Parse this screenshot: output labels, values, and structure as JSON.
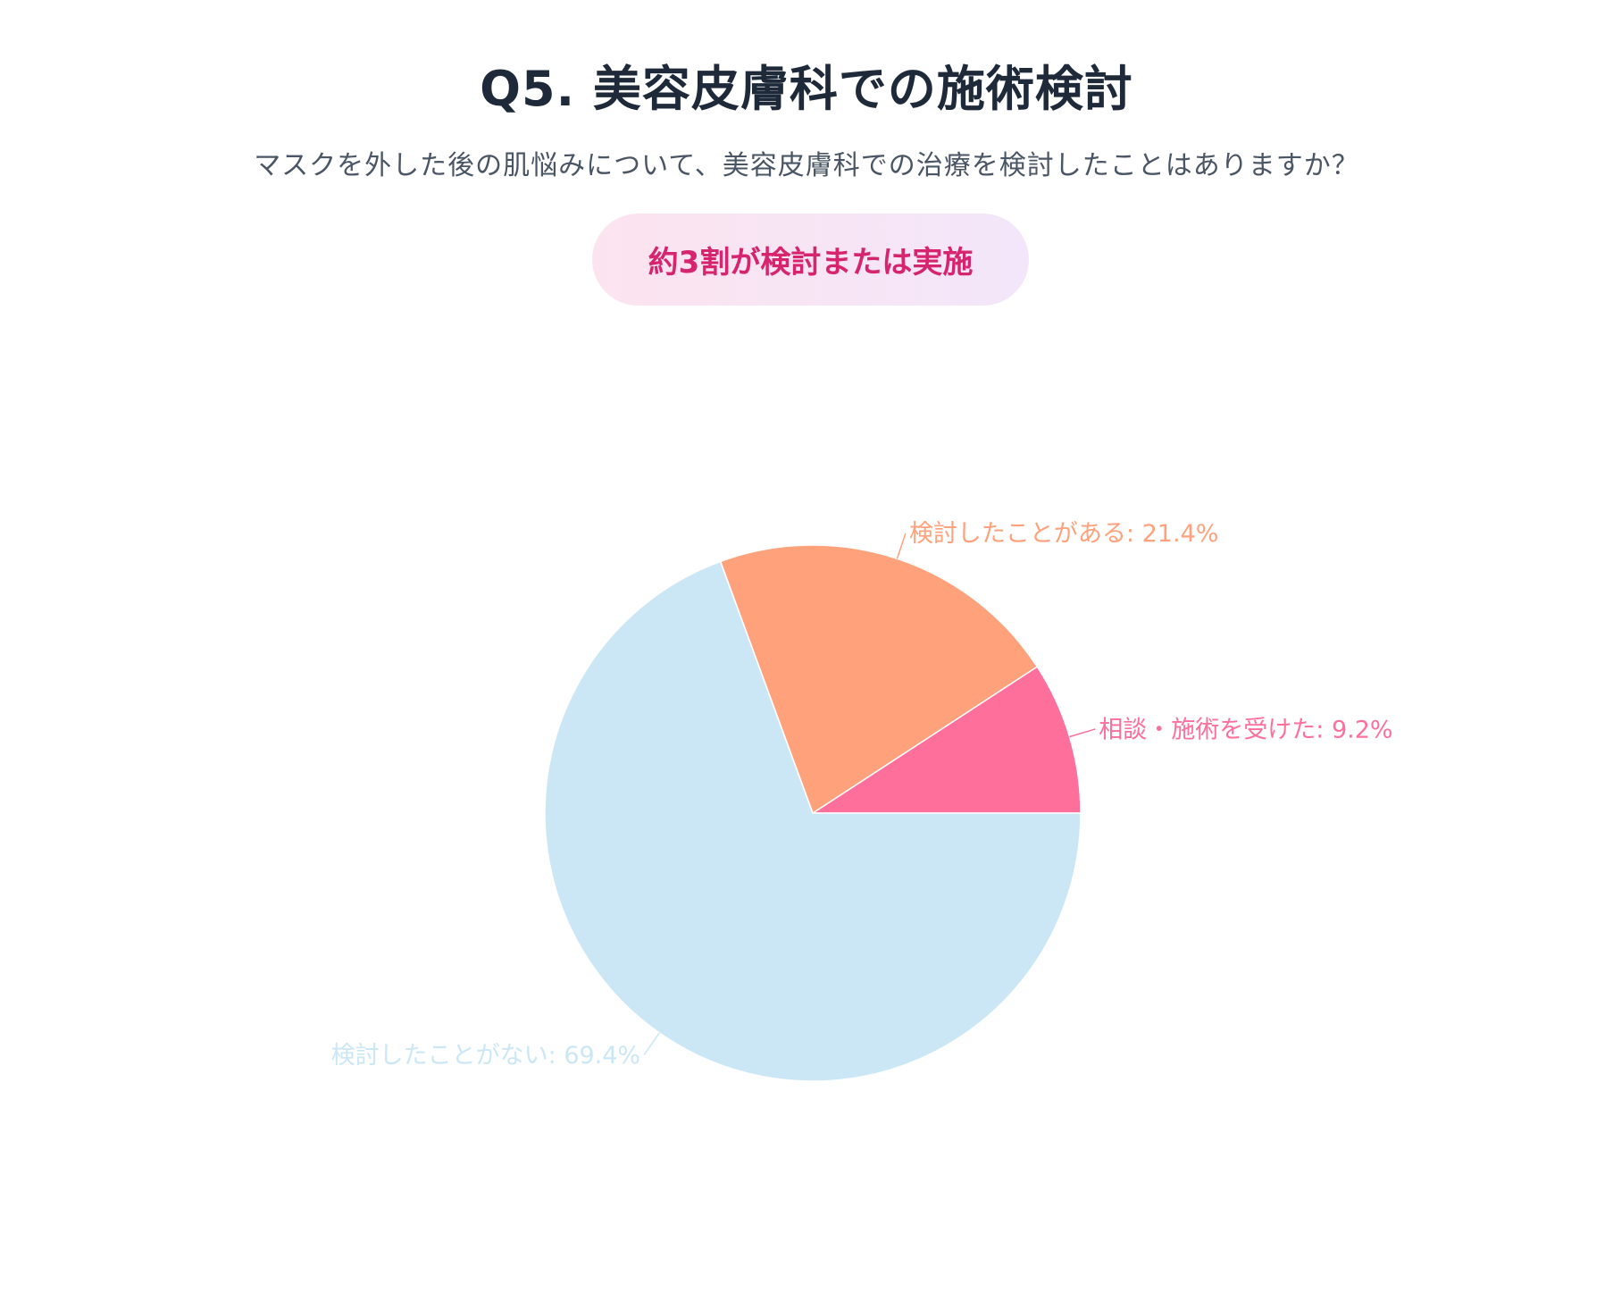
{
  "header": {
    "title": "Q5. 美容皮膚科での施術検討",
    "subtitle": "マスクを外した後の肌悩みについて、美容皮膚科での治療を検討したことはありますか？",
    "badge": "約3割が検討または実施"
  },
  "chart_data": {
    "type": "pie",
    "title": "",
    "slices": [
      {
        "label": "相談・施術を受けた",
        "value": 9.2,
        "display": "相談・施術を受けた: 9.2%",
        "color": "#ff6f9b"
      },
      {
        "label": "検討したことがある",
        "value": 21.4,
        "display": "検討したことがある: 21.4%",
        "color": "#ffa27b"
      },
      {
        "label": "検討したことがない",
        "value": 69.4,
        "display": "検討したことがない: 69.4%",
        "color": "#cbe7f6"
      }
    ],
    "start_angle": "3 o'clock",
    "direction": "counterclockwise",
    "legend": "none"
  }
}
